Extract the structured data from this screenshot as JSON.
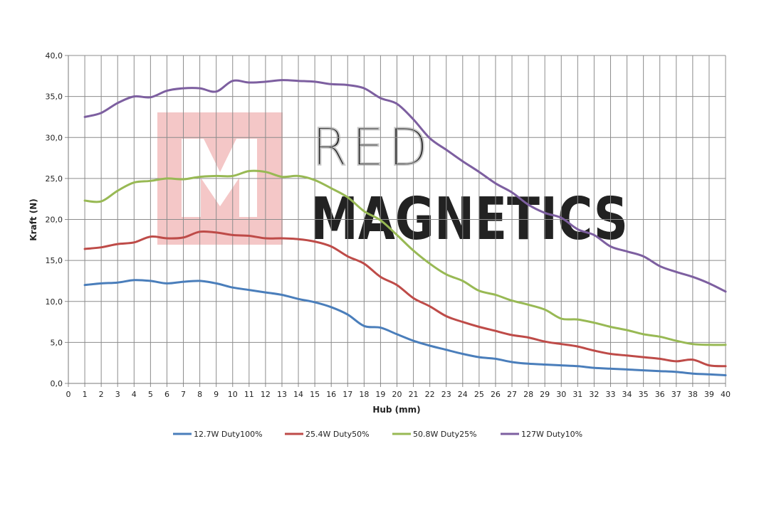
{
  "watermark": {
    "line1": "RED",
    "line2": "MAGNETICS"
  },
  "chart_data": {
    "type": "line",
    "title": "",
    "xlabel": "Hub (mm)",
    "ylabel": "Kraft (N)",
    "xlim": [
      0,
      40
    ],
    "ylim": [
      0,
      40
    ],
    "x_ticks": [
      0,
      1,
      2,
      3,
      4,
      5,
      6,
      7,
      8,
      9,
      10,
      11,
      12,
      13,
      14,
      15,
      16,
      17,
      18,
      19,
      20,
      21,
      22,
      23,
      24,
      25,
      26,
      27,
      28,
      29,
      30,
      31,
      32,
      33,
      34,
      35,
      36,
      37,
      38,
      39,
      40
    ],
    "y_ticks": [
      "0,0",
      "5,0",
      "10,0",
      "15,0",
      "20,0",
      "25,0",
      "30,0",
      "35,0",
      "40,0"
    ],
    "grid": true,
    "legend_position": "bottom",
    "x": [
      1,
      2,
      3,
      4,
      5,
      6,
      7,
      8,
      9,
      10,
      11,
      12,
      13,
      14,
      15,
      16,
      17,
      18,
      19,
      20,
      21,
      22,
      23,
      24,
      25,
      26,
      27,
      28,
      29,
      30,
      31,
      32,
      33,
      34,
      35,
      36,
      37,
      38,
      39,
      40
    ],
    "series": [
      {
        "name": "12.7W Duty100%",
        "color": "#4a7ebb",
        "values": [
          12.0,
          12.2,
          12.3,
          12.6,
          12.5,
          12.2,
          12.4,
          12.5,
          12.2,
          11.7,
          11.4,
          11.1,
          10.8,
          10.3,
          9.9,
          9.3,
          8.4,
          7.0,
          6.8,
          6.0,
          5.2,
          4.6,
          4.1,
          3.6,
          3.2,
          3.0,
          2.6,
          2.4,
          2.3,
          2.2,
          2.1,
          1.9,
          1.8,
          1.7,
          1.6,
          1.5,
          1.4,
          1.2,
          1.1,
          1.0
        ]
      },
      {
        "name": "25.4W Duty50%",
        "color": "#be4b48",
        "values": [
          16.4,
          16.6,
          17.0,
          17.2,
          17.9,
          17.7,
          17.8,
          18.5,
          18.4,
          18.1,
          18.0,
          17.7,
          17.7,
          17.6,
          17.3,
          16.7,
          15.5,
          14.6,
          13.0,
          12.0,
          10.4,
          9.4,
          8.2,
          7.5,
          6.9,
          6.4,
          5.9,
          5.6,
          5.1,
          4.8,
          4.5,
          4.0,
          3.6,
          3.4,
          3.2,
          3.0,
          2.7,
          2.9,
          2.2,
          2.1
        ]
      },
      {
        "name": "50.8W Duty25%",
        "color": "#98b954",
        "values": [
          22.3,
          22.2,
          23.5,
          24.5,
          24.7,
          25.0,
          24.9,
          25.2,
          25.3,
          25.3,
          25.9,
          25.8,
          25.2,
          25.3,
          24.8,
          23.8,
          22.7,
          21.0,
          19.9,
          18.1,
          16.2,
          14.6,
          13.3,
          12.5,
          11.3,
          10.8,
          10.1,
          9.6,
          9.0,
          7.9,
          7.8,
          7.4,
          6.9,
          6.5,
          6.0,
          5.7,
          5.2,
          4.8,
          4.7,
          4.7
        ]
      },
      {
        "name": "127W Duty10%",
        "color": "#7d5fa0",
        "values": [
          32.5,
          33.0,
          34.2,
          35.0,
          34.9,
          35.7,
          36.0,
          36.0,
          35.6,
          36.9,
          36.7,
          36.8,
          37.0,
          36.9,
          36.8,
          36.5,
          36.4,
          36.0,
          34.8,
          34.1,
          32.2,
          29.9,
          28.5,
          27.1,
          25.8,
          24.4,
          23.3,
          21.8,
          20.8,
          20.2,
          18.8,
          18.1,
          16.7,
          16.1,
          15.5,
          14.3,
          13.6,
          13.0,
          12.2,
          11.2
        ]
      }
    ]
  }
}
